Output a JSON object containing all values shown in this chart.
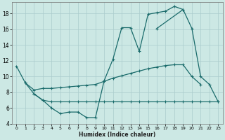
{
  "xlabel": "Humidex (Indice chaleur)",
  "bg_color": "#cce8e4",
  "grid_color": "#aacccc",
  "line_color": "#1a6b6b",
  "xlim": [
    -0.5,
    23.5
  ],
  "ylim": [
    4,
    19.4
  ],
  "yticks": [
    4,
    6,
    8,
    10,
    12,
    14,
    16,
    18
  ],
  "xticks": [
    0,
    1,
    2,
    3,
    4,
    5,
    6,
    7,
    8,
    9,
    10,
    11,
    12,
    13,
    14,
    15,
    16,
    17,
    18,
    19,
    20,
    21,
    22,
    23
  ],
  "curve_a_x": [
    0,
    1,
    2,
    3,
    4,
    5,
    6,
    7,
    8,
    9,
    10,
    11,
    12,
    13,
    14,
    15,
    16,
    17,
    18,
    19
  ],
  "curve_a_y": [
    11.3,
    9.2,
    7.8,
    7.0,
    6.0,
    5.3,
    5.5,
    5.5,
    4.8,
    4.8,
    9.5,
    12.2,
    16.2,
    16.2,
    13.2,
    17.9,
    18.1,
    18.3,
    18.9,
    18.5
  ],
  "curve_b_x": [
    16,
    19,
    20,
    21,
    22,
    23
  ],
  "curve_b_y": [
    16.1,
    18.5,
    16.1,
    10.0,
    9.0,
    6.8
  ],
  "curve_c_x": [
    1,
    2,
    3,
    4,
    5,
    6,
    7,
    8,
    9,
    10,
    11,
    12,
    13,
    14,
    15,
    16,
    17,
    18,
    19,
    20,
    21
  ],
  "curve_c_y": [
    9.2,
    8.3,
    8.5,
    8.5,
    8.6,
    8.7,
    8.8,
    8.9,
    9.0,
    9.4,
    9.8,
    10.1,
    10.4,
    10.7,
    11.0,
    11.2,
    11.4,
    11.5,
    11.5,
    10.0,
    9.0
  ],
  "curve_d_x": [
    2,
    3,
    4,
    5,
    6,
    7,
    8,
    9,
    10,
    11,
    12,
    13,
    14,
    15,
    16,
    17,
    18,
    19,
    20,
    21,
    22,
    23
  ],
  "curve_d_y": [
    7.8,
    7.0,
    6.8,
    6.8,
    6.8,
    6.8,
    6.8,
    6.8,
    6.8,
    6.8,
    6.8,
    6.8,
    6.8,
    6.8,
    6.8,
    6.8,
    6.8,
    6.8,
    6.8,
    6.8,
    6.8,
    6.8
  ]
}
